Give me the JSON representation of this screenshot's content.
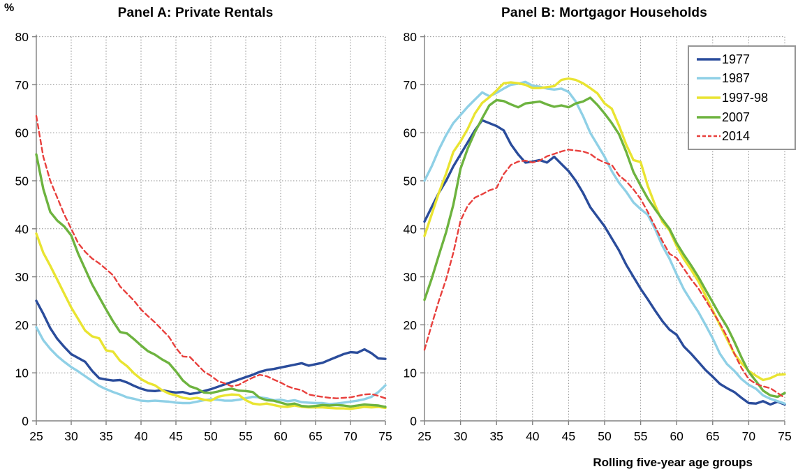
{
  "page": {
    "background": "#ffffff"
  },
  "unit_label": "%",
  "x_axis_title": "Rolling five-year age groups",
  "colors": {
    "axis": "#808080",
    "grid": "#8c8c8c",
    "text": "#000000",
    "legend_border": "#969696",
    "series_1977": "#2a4c9b",
    "series_1987": "#8fd0e6",
    "series_1997_98": "#e9e431",
    "series_2007": "#6db33f",
    "series_2014": "#e8403d"
  },
  "legend": {
    "items": [
      {
        "label": "1977",
        "color": "#2a4c9b",
        "dashed": false
      },
      {
        "label": "1987",
        "color": "#8fd0e6",
        "dashed": false
      },
      {
        "label": "1997-98",
        "color": "#e9e431",
        "dashed": false
      },
      {
        "label": "2007",
        "color": "#6db33f",
        "dashed": false
      },
      {
        "label": "2014",
        "color": "#e8403d",
        "dashed": true
      }
    ]
  },
  "chart_data": [
    {
      "type": "line",
      "title": "Panel A: Private Rentals",
      "xlabel": "Rolling five-year age groups",
      "ylabel": "%",
      "xlim": [
        25,
        75
      ],
      "ylim": [
        0,
        80
      ],
      "x_ticks": [
        25,
        30,
        35,
        40,
        45,
        50,
        55,
        60,
        65,
        70,
        75
      ],
      "y_ticks": [
        0,
        10,
        20,
        30,
        40,
        50,
        60,
        70,
        80
      ],
      "grid": true,
      "x": [
        25,
        26,
        27,
        28,
        29,
        30,
        31,
        32,
        33,
        34,
        35,
        36,
        37,
        38,
        39,
        40,
        41,
        42,
        43,
        44,
        45,
        46,
        47,
        48,
        49,
        50,
        51,
        52,
        53,
        54,
        55,
        56,
        57,
        58,
        59,
        60,
        61,
        62,
        63,
        64,
        65,
        66,
        67,
        68,
        69,
        70,
        71,
        72,
        73,
        74,
        75
      ],
      "series": [
        {
          "name": "1977",
          "color": "#2a4c9b",
          "style": "solid",
          "values": [
            25.0,
            22.3,
            19.3,
            17.1,
            15.4,
            13.9,
            13.1,
            12.3,
            10.4,
            8.9,
            8.6,
            8.4,
            8.5,
            8.0,
            7.3,
            6.7,
            6.3,
            6.2,
            6.4,
            6.1,
            5.9,
            6.0,
            5.6,
            5.8,
            6.2,
            6.6,
            7.1,
            7.6,
            8.1,
            8.6,
            9.1,
            9.6,
            10.2,
            10.6,
            10.8,
            11.1,
            11.4,
            11.7,
            12.0,
            11.5,
            11.8,
            12.1,
            12.7,
            13.3,
            13.9,
            14.3,
            14.2,
            14.9,
            14.1,
            13.0,
            12.9
          ]
        },
        {
          "name": "1987",
          "color": "#8fd0e6",
          "style": "solid",
          "values": [
            19.5,
            16.8,
            15.0,
            13.5,
            12.3,
            11.2,
            10.3,
            9.3,
            8.3,
            7.3,
            6.6,
            6.0,
            5.5,
            4.9,
            4.6,
            4.2,
            4.1,
            4.2,
            4.1,
            4.0,
            3.8,
            3.7,
            3.7,
            4.0,
            4.3,
            4.5,
            4.4,
            4.2,
            4.2,
            4.4,
            4.7,
            5.0,
            4.9,
            4.7,
            4.3,
            4.4,
            4.1,
            4.3,
            3.9,
            3.8,
            3.7,
            3.7,
            3.5,
            3.6,
            3.8,
            4.0,
            4.2,
            4.5,
            5.0,
            6.0,
            7.4
          ]
        },
        {
          "name": "1997-98",
          "color": "#e9e431",
          "style": "solid",
          "values": [
            39.0,
            35.0,
            32.3,
            29.4,
            26.5,
            23.6,
            21.2,
            18.8,
            17.6,
            17.2,
            14.7,
            14.4,
            12.5,
            11.4,
            9.9,
            8.7,
            7.9,
            7.4,
            6.4,
            5.7,
            5.3,
            4.8,
            4.6,
            4.8,
            4.4,
            4.2,
            5.0,
            5.3,
            5.5,
            5.4,
            4.3,
            3.6,
            3.4,
            3.6,
            3.3,
            3.0,
            2.9,
            3.2,
            2.9,
            2.8,
            2.8,
            2.8,
            2.7,
            2.6,
            2.6,
            2.5,
            2.7,
            2.9,
            2.8,
            2.9,
            2.7
          ]
        },
        {
          "name": "2007",
          "color": "#6db33f",
          "style": "solid",
          "values": [
            55.5,
            48.3,
            43.5,
            41.7,
            40.5,
            38.6,
            34.8,
            31.6,
            28.4,
            25.8,
            23.2,
            20.7,
            18.5,
            18.2,
            17.0,
            15.7,
            14.5,
            13.8,
            12.8,
            12.0,
            10.3,
            8.4,
            7.2,
            6.7,
            5.9,
            5.8,
            6.1,
            6.5,
            6.7,
            6.3,
            6.2,
            6.0,
            4.8,
            4.3,
            4.2,
            3.8,
            3.4,
            3.6,
            3.1,
            3.0,
            3.1,
            3.3,
            3.2,
            3.3,
            3.2,
            3.0,
            3.2,
            3.4,
            3.3,
            3.2,
            2.9
          ]
        },
        {
          "name": "2014",
          "color": "#e8403d",
          "style": "dashed",
          "values": [
            63.5,
            55.0,
            50.0,
            46.5,
            43.0,
            40.0,
            37.0,
            35.2,
            33.8,
            32.8,
            31.6,
            30.3,
            28.0,
            26.5,
            25.0,
            23.2,
            21.8,
            20.5,
            19.0,
            17.5,
            15.2,
            13.4,
            13.3,
            11.8,
            10.3,
            9.4,
            8.3,
            7.8,
            7.2,
            7.5,
            8.3,
            9.0,
            9.6,
            9.3,
            8.6,
            8.0,
            7.2,
            6.7,
            6.4,
            5.5,
            5.2,
            5.0,
            4.8,
            4.7,
            4.8,
            4.9,
            5.2,
            5.5,
            5.6,
            5.2,
            4.7
          ]
        }
      ]
    },
    {
      "type": "line",
      "title": "Panel B: Mortgagor Households",
      "xlabel": "Rolling five-year age groups",
      "ylabel": "%",
      "xlim": [
        25,
        75
      ],
      "ylim": [
        0,
        80
      ],
      "x_ticks": [
        25,
        30,
        35,
        40,
        45,
        50,
        55,
        60,
        65,
        70,
        75
      ],
      "y_ticks": [
        0,
        10,
        20,
        30,
        40,
        50,
        60,
        70,
        80
      ],
      "grid": true,
      "x": [
        25,
        26,
        27,
        28,
        29,
        30,
        31,
        32,
        33,
        34,
        35,
        36,
        37,
        38,
        39,
        40,
        41,
        42,
        43,
        44,
        45,
        46,
        47,
        48,
        49,
        50,
        51,
        52,
        53,
        54,
        55,
        56,
        57,
        58,
        59,
        60,
        61,
        62,
        63,
        64,
        65,
        66,
        67,
        68,
        69,
        70,
        71,
        72,
        73,
        74,
        75
      ],
      "series": [
        {
          "name": "1977",
          "color": "#2a4c9b",
          "style": "solid",
          "values": [
            41.5,
            44.5,
            47.5,
            50.0,
            53.0,
            55.5,
            58.0,
            60.5,
            62.6,
            62.0,
            61.4,
            60.5,
            57.6,
            55.5,
            53.8,
            54.0,
            54.3,
            53.8,
            55.0,
            53.5,
            52.0,
            50.0,
            47.5,
            44.5,
            42.5,
            40.5,
            38.0,
            35.5,
            32.5,
            30.0,
            27.5,
            25.3,
            23.0,
            20.8,
            19.0,
            17.9,
            15.5,
            14.0,
            12.3,
            10.6,
            9.2,
            7.7,
            6.8,
            6.0,
            4.8,
            3.7,
            3.6,
            4.1,
            3.4,
            4.0,
            3.4
          ]
        },
        {
          "name": "1987",
          "color": "#8fd0e6",
          "style": "solid",
          "values": [
            50.0,
            53.0,
            56.5,
            59.5,
            62.0,
            63.7,
            65.4,
            66.9,
            68.4,
            67.6,
            68.3,
            69.2,
            70.0,
            70.2,
            70.6,
            69.8,
            69.6,
            69.2,
            69.0,
            69.2,
            68.5,
            66.5,
            63.5,
            60.0,
            57.5,
            55.0,
            52.0,
            49.6,
            47.7,
            45.5,
            44.1,
            42.9,
            40.0,
            36.5,
            33.8,
            30.5,
            27.4,
            25.0,
            22.7,
            20.0,
            17.2,
            14.0,
            11.8,
            10.4,
            8.7,
            7.5,
            6.7,
            5.3,
            4.6,
            4.1,
            3.6
          ]
        },
        {
          "name": "1997-98",
          "color": "#e9e431",
          "style": "solid",
          "values": [
            38.5,
            43.0,
            47.5,
            51.5,
            56.0,
            58.2,
            60.8,
            64.0,
            66.2,
            67.4,
            68.8,
            70.3,
            70.5,
            70.3,
            70.0,
            69.3,
            69.3,
            69.5,
            69.7,
            71.0,
            71.3,
            71.0,
            70.3,
            69.3,
            68.2,
            66.1,
            65.0,
            61.5,
            57.5,
            54.3,
            53.9,
            48.9,
            45.0,
            41.5,
            39.7,
            36.4,
            33.7,
            31.5,
            29.1,
            26.1,
            23.0,
            20.0,
            17.0,
            14.0,
            12.0,
            10.4,
            9.4,
            8.5,
            8.9,
            9.6,
            9.7
          ]
        },
        {
          "name": "2007",
          "color": "#6db33f",
          "style": "solid",
          "values": [
            25.2,
            29.6,
            34.5,
            39.3,
            45.0,
            52.5,
            56.7,
            60.1,
            63.0,
            65.7,
            66.8,
            66.6,
            65.9,
            65.3,
            66.1,
            66.3,
            66.5,
            65.9,
            65.4,
            65.7,
            65.3,
            66.1,
            66.5,
            67.3,
            65.8,
            64.0,
            62.0,
            59.7,
            56.0,
            51.8,
            49.0,
            46.3,
            44.1,
            42.0,
            40.0,
            37.0,
            34.6,
            32.4,
            30.0,
            27.3,
            24.7,
            22.0,
            19.6,
            16.5,
            13.2,
            10.2,
            8.3,
            6.3,
            5.3,
            5.0,
            5.8
          ]
        },
        {
          "name": "2014",
          "color": "#e8403d",
          "style": "dashed",
          "values": [
            14.8,
            20.0,
            25.0,
            29.5,
            35.0,
            41.7,
            44.8,
            46.5,
            47.2,
            48.0,
            48.5,
            51.4,
            53.3,
            54.0,
            54.2,
            53.8,
            54.2,
            55.1,
            55.6,
            56.1,
            56.5,
            56.3,
            56.1,
            55.6,
            54.5,
            53.8,
            53.3,
            51.1,
            49.9,
            48.2,
            46.2,
            43.5,
            40.5,
            37.5,
            34.8,
            33.9,
            31.7,
            29.5,
            27.6,
            25.2,
            22.7,
            20.3,
            17.5,
            14.0,
            11.0,
            8.7,
            7.7,
            7.2,
            6.8,
            5.8,
            4.8
          ]
        }
      ]
    }
  ]
}
